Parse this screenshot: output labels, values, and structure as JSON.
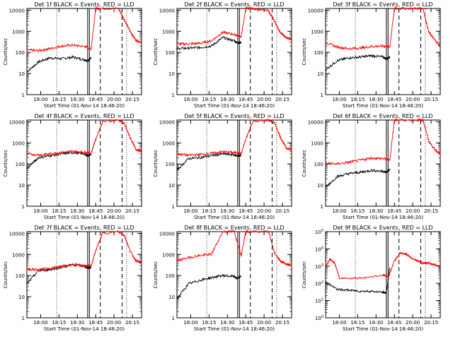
{
  "figure": {
    "colors": {
      "events": "#000000",
      "lld": "#ff0000",
      "axis": "#000000",
      "background": "#ffffff"
    }
  },
  "chart_data": [
    {
      "type": "line",
      "title": "Det 1f BLACK = Events, RED = LLD",
      "xlabel": "Start Time (01-Nov-14 18:46:20)",
      "ylabel": "Counts/sec",
      "xticks": [
        "18:00",
        "18:15",
        "18:30",
        "18:45",
        "20:00",
        "20:15"
      ],
      "ytick_style": "plain",
      "ylim": [
        1,
        12000
      ],
      "yscale": "log",
      "series": [
        {
          "name": "Events",
          "color": "#000000",
          "x": [
            0.0,
            0.1,
            0.2,
            0.3,
            0.4,
            0.5,
            0.53,
            0.56
          ],
          "y": [
            12,
            35,
            55,
            50,
            60,
            45,
            40,
            55
          ]
        },
        {
          "name": "LLD",
          "color": "#ff0000",
          "x": [
            0.0,
            0.1,
            0.2,
            0.3,
            0.4,
            0.5,
            0.56,
            0.6,
            0.63,
            0.8,
            0.85,
            0.9,
            0.95,
            1.0
          ],
          "y": [
            130,
            120,
            150,
            200,
            220,
            190,
            150,
            12000,
            12000,
            12000,
            3500,
            1000,
            380,
            300
          ]
        }
      ]
    },
    {
      "type": "line",
      "title": "Det 2f BLACK = Events, RED = LLD",
      "xlabel": "Start Time (01-Nov-14 18:46:20)",
      "ylabel": "Counts/sec",
      "xticks": [
        "18:00",
        "18:15",
        "18:30",
        "18:45",
        "20:00",
        "20:15"
      ],
      "ytick_style": "plain",
      "ylim": [
        1,
        12000
      ],
      "yscale": "log",
      "series": [
        {
          "name": "Events",
          "color": "#000000",
          "x": [
            0.0,
            0.1,
            0.2,
            0.3,
            0.4,
            0.5,
            0.53,
            0.56
          ],
          "y": [
            150,
            160,
            170,
            200,
            500,
            350,
            280,
            300
          ]
        },
        {
          "name": "LLD",
          "color": "#ff0000",
          "x": [
            0.0,
            0.1,
            0.2,
            0.3,
            0.4,
            0.5,
            0.56,
            0.6,
            0.66,
            0.8,
            0.85,
            0.9,
            0.95,
            1.0
          ],
          "y": [
            250,
            250,
            270,
            350,
            900,
            700,
            550,
            12000,
            12000,
            9000,
            3000,
            900,
            500,
            400
          ]
        }
      ]
    },
    {
      "type": "line",
      "title": "Det 3f BLACK = Events, RED = LLD",
      "xlabel": "Start Time (01-Nov-14 18:46:20)",
      "ylabel": "Counts/sec",
      "xticks": [
        "18:00",
        "18:15",
        "18:30",
        "18:45",
        "20:00",
        "20:15"
      ],
      "ytick_style": "plain",
      "ylim": [
        1,
        12000
      ],
      "yscale": "log",
      "series": [
        {
          "name": "Events",
          "color": "#000000",
          "x": [
            0.0,
            0.1,
            0.2,
            0.3,
            0.4,
            0.5,
            0.53,
            0.56
          ],
          "y": [
            15,
            40,
            55,
            60,
            70,
            60,
            50,
            60
          ]
        },
        {
          "name": "LLD",
          "color": "#ff0000",
          "x": [
            0.0,
            0.1,
            0.2,
            0.3,
            0.4,
            0.5,
            0.56,
            0.6,
            0.63,
            0.8,
            0.85,
            0.9,
            0.95,
            1.0
          ],
          "y": [
            300,
            180,
            150,
            160,
            190,
            200,
            180,
            12000,
            12000,
            12000,
            12000,
            900,
            400,
            200
          ]
        }
      ]
    },
    {
      "type": "line",
      "title": "Det 4f BLACK = Events, RED = LLD",
      "xlabel": "Start Time (01-Nov-14 18:46:20)",
      "ylabel": "Counts/sec",
      "xticks": [
        "18:00",
        "18:15",
        "18:30",
        "18:45",
        "20:00",
        "20:15"
      ],
      "ytick_style": "plain",
      "ylim": [
        1,
        12000
      ],
      "yscale": "log",
      "series": [
        {
          "name": "Events",
          "color": "#000000",
          "x": [
            0.0,
            0.1,
            0.2,
            0.3,
            0.4,
            0.5,
            0.53,
            0.56
          ],
          "y": [
            60,
            200,
            250,
            300,
            350,
            300,
            250,
            280
          ]
        },
        {
          "name": "LLD",
          "color": "#ff0000",
          "x": [
            0.0,
            0.1,
            0.2,
            0.3,
            0.4,
            0.5,
            0.56,
            0.6,
            0.66,
            0.8,
            0.85,
            0.9,
            0.95,
            1.0
          ],
          "y": [
            300,
            270,
            300,
            350,
            400,
            370,
            320,
            1500,
            10000,
            12000,
            8000,
            1800,
            500,
            400
          ]
        }
      ]
    },
    {
      "type": "line",
      "title": "Det 5f BLACK = Events, RED = LLD",
      "xlabel": "Start Time (01-Nov-14 18:46:20)",
      "ylabel": "Counts/sec",
      "xticks": [
        "18:00",
        "18:15",
        "18:30",
        "18:45",
        "20:00",
        "20:15"
      ],
      "ytick_style": "plain",
      "ylim": [
        1,
        12000
      ],
      "yscale": "log",
      "series": [
        {
          "name": "Events",
          "color": "#000000",
          "x": [
            0.0,
            0.1,
            0.2,
            0.3,
            0.4,
            0.5,
            0.53,
            0.56
          ],
          "y": [
            50,
            180,
            200,
            250,
            300,
            270,
            240,
            260
          ]
        },
        {
          "name": "LLD",
          "color": "#ff0000",
          "x": [
            0.0,
            0.1,
            0.2,
            0.3,
            0.4,
            0.5,
            0.56,
            0.6,
            0.66,
            0.8,
            0.85,
            0.9,
            0.95,
            1.0
          ],
          "y": [
            300,
            260,
            280,
            320,
            380,
            350,
            300,
            1500,
            10000,
            12000,
            9000,
            2000,
            600,
            450
          ]
        }
      ]
    },
    {
      "type": "line",
      "title": "Det 6f BLACK = Events, RED = LLD",
      "xlabel": "Start Time (01-Nov-14 18:46:20)",
      "ylabel": "Counts/sec",
      "xticks": [
        "18:00",
        "18:15",
        "18:30",
        "18:45",
        "20:00",
        "20:15"
      ],
      "ytick_style": "plain",
      "ylim": [
        1,
        12000
      ],
      "yscale": "log",
      "series": [
        {
          "name": "Events",
          "color": "#000000",
          "x": [
            0.0,
            0.1,
            0.2,
            0.3,
            0.4,
            0.5,
            0.53,
            0.56
          ],
          "y": [
            8,
            25,
            35,
            40,
            50,
            45,
            40,
            55
          ]
        },
        {
          "name": "LLD",
          "color": "#ff0000",
          "x": [
            0.0,
            0.1,
            0.2,
            0.3,
            0.4,
            0.5,
            0.56,
            0.6,
            0.63,
            0.8,
            0.85,
            0.9,
            0.95,
            1.0
          ],
          "y": [
            110,
            100,
            120,
            150,
            190,
            180,
            150,
            12000,
            12000,
            12000,
            12000,
            1200,
            500,
            300
          ]
        }
      ]
    },
    {
      "type": "line",
      "title": "Det 7f BLACK = Events, RED = LLD",
      "xlabel": "Start Time (01-Nov-14 18:46:20)",
      "ylabel": "Counts/sec",
      "xticks": [
        "18:00",
        "18:15",
        "18:30",
        "18:45",
        "20:00",
        "20:15"
      ],
      "ytick_style": "plain",
      "ylim": [
        1,
        12000
      ],
      "yscale": "log",
      "series": [
        {
          "name": "Events",
          "color": "#000000",
          "x": [
            0.0,
            0.1,
            0.2,
            0.3,
            0.4,
            0.5,
            0.53,
            0.56
          ],
          "y": [
            40,
            170,
            190,
            250,
            320,
            280,
            230,
            250
          ]
        },
        {
          "name": "LLD",
          "color": "#ff0000",
          "x": [
            0.0,
            0.1,
            0.2,
            0.3,
            0.4,
            0.5,
            0.56,
            0.6,
            0.66,
            0.8,
            0.85,
            0.9,
            0.95,
            1.0
          ],
          "y": [
            200,
            190,
            220,
            270,
            330,
            300,
            280,
            1500,
            10000,
            12000,
            8000,
            1500,
            500,
            400
          ]
        }
      ]
    },
    {
      "type": "line",
      "title": "Det 8f BLACK = Events, RED = LLD",
      "xlabel": "Start Time (01-Nov-14 18:46:20)",
      "ylabel": "Counts/sec",
      "xticks": [
        "18:00",
        "18:15",
        "18:30",
        "18:45",
        "20:00",
        "20:15"
      ],
      "ytick_style": "plain",
      "ylim": [
        1,
        12000
      ],
      "yscale": "log",
      "series": [
        {
          "name": "Events",
          "color": "#000000",
          "x": [
            0.0,
            0.1,
            0.2,
            0.3,
            0.4,
            0.5,
            0.53,
            0.56
          ],
          "y": [
            8,
            40,
            60,
            80,
            100,
            90,
            70,
            100
          ]
        },
        {
          "name": "LLD",
          "color": "#ff0000",
          "x": [
            0.0,
            0.1,
            0.2,
            0.3,
            0.4,
            0.5,
            0.56,
            0.6,
            0.63,
            0.8,
            0.85,
            0.9,
            0.95,
            1.0
          ],
          "y": [
            500,
            700,
            900,
            1000,
            12000,
            12000,
            900,
            12000,
            12000,
            12000,
            1200,
            500,
            350,
            300
          ]
        }
      ]
    },
    {
      "type": "line",
      "title": "Det 9f BLACK = Events, RED = LLD",
      "xlabel": "Start Time (01-Nov-14 18:46:20)",
      "ylabel": "Counts/sec",
      "xticks": [
        "18:00",
        "18:15",
        "18:30",
        "18:45",
        "20:00",
        "20:15"
      ],
      "ytick_style": "exponent",
      "ylim": [
        1,
        100000
      ],
      "yscale": "log",
      "series": [
        {
          "name": "Events",
          "color": "#000000",
          "x": [
            0.0,
            0.1,
            0.2,
            0.3,
            0.4,
            0.5,
            0.53,
            0.56
          ],
          "y": [
            120,
            45,
            40,
            35,
            35,
            30,
            28,
            800
          ]
        },
        {
          "name": "LLD",
          "color": "#ff0000",
          "x": [
            0.0,
            0.04,
            0.08,
            0.12,
            0.3,
            0.5,
            0.55,
            0.6,
            0.65,
            0.7,
            0.75,
            0.8,
            0.85,
            0.9,
            0.95,
            1.0
          ],
          "y": [
            1000,
            2500,
            1500,
            200,
            200,
            300,
            250,
            2000,
            6000,
            5000,
            3000,
            2000,
            1500,
            1500,
            1200,
            1000
          ]
        }
      ]
    }
  ]
}
